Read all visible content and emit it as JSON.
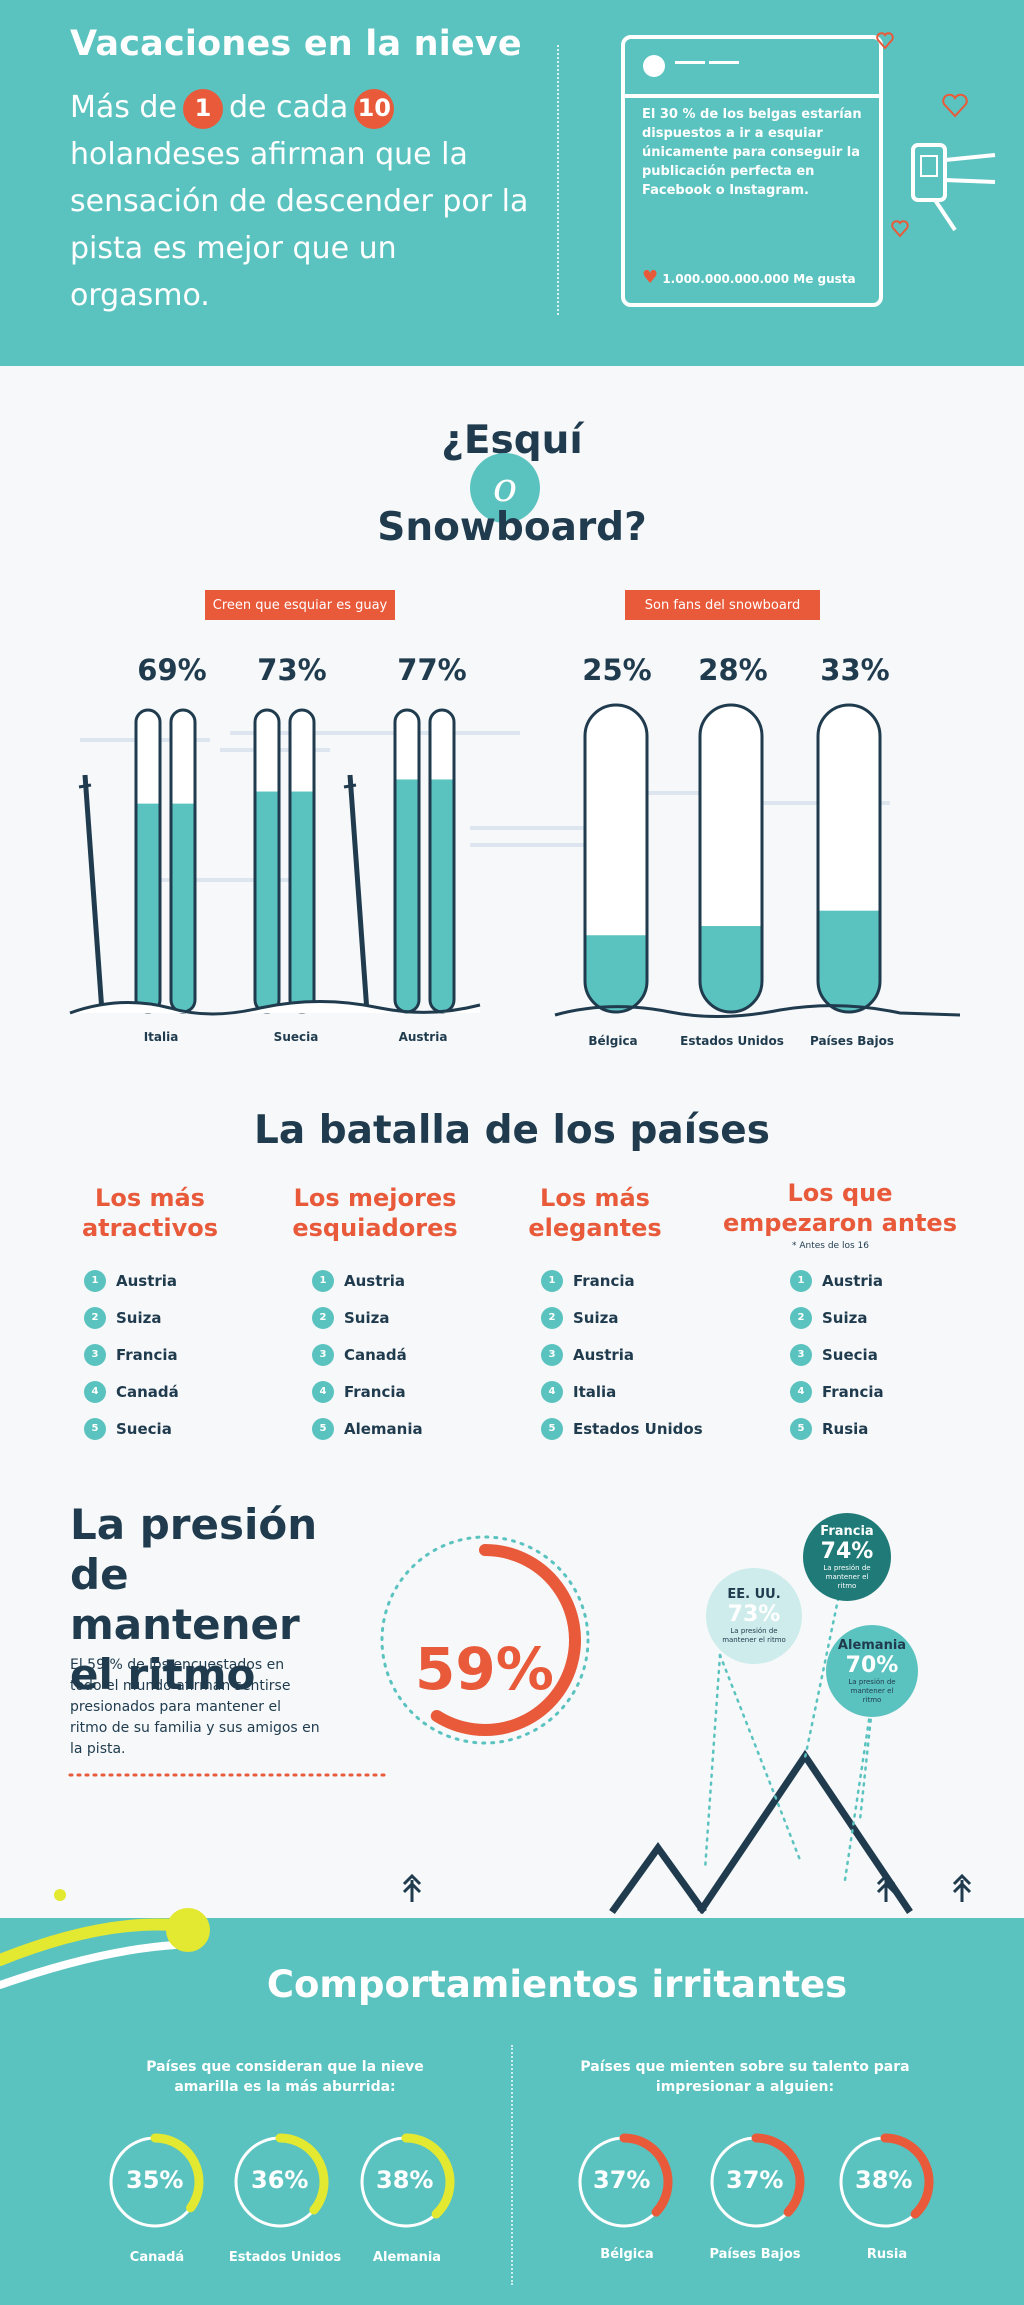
{
  "header": {
    "title": "Vacaciones en la nieve",
    "text_before": "Más de",
    "num1": "1",
    "text_mid": "de cada",
    "num2": "10",
    "text_after": "holandeses afirman que la sensación de descender por la pista es mejor que un orgasmo.",
    "social_text": "El 30 % de los belgas estarían dispuestos a ir a esquiar únicamente para conseguir la publicación perfecta en Facebook o Instagram.",
    "likes": "1.000.000.000.000 Me gusta"
  },
  "skivs": {
    "title_line1": "¿Esquí",
    "title_o": "o",
    "title_line2": "Snowboard?",
    "ski_label": "Creen que esquiar es guay",
    "snow_label": "Son fans del snowboard",
    "ski": [
      {
        "country": "Italia",
        "pct": "69%",
        "value": 69
      },
      {
        "country": "Suecia",
        "pct": "73%",
        "value": 73
      },
      {
        "country": "Austria",
        "pct": "77%",
        "value": 77
      }
    ],
    "snow": [
      {
        "country": "Bélgica",
        "pct": "25%",
        "value": 25
      },
      {
        "country": "Estados Unidos",
        "pct": "28%",
        "value": 28
      },
      {
        "country": "Países Bajos",
        "pct": "33%",
        "value": 33
      }
    ]
  },
  "battle": {
    "title": "La batalla de los países",
    "note": "* Antes de los 16",
    "categories": [
      {
        "title_l1": "Los más",
        "title_l2": "atractivos",
        "items": [
          "Austria",
          "Suiza",
          "Francia",
          "Canadá",
          "Suecia"
        ]
      },
      {
        "title_l1": "Los mejores",
        "title_l2": "esquiadores",
        "items": [
          "Austria",
          "Suiza",
          "Canadá",
          "Francia",
          "Alemania"
        ]
      },
      {
        "title_l1": "Los más",
        "title_l2": "elegantes",
        "items": [
          "Francia",
          "Suiza",
          "Austria",
          "Italia",
          "Estados Unidos"
        ]
      },
      {
        "title_l1": "Los que",
        "title_l2": "empezaron antes",
        "items": [
          "Austria",
          "Suiza",
          "Suecia",
          "Francia",
          "Rusia"
        ]
      }
    ]
  },
  "pressure": {
    "title_l1": "La presión",
    "title_l2": "de mantener",
    "title_l3": "el ritmo",
    "text": "El 59 % de los encuestados en todo el mundo afirman sentirse presionados para mantener el ritmo de su familia y sus amigos en la pista.",
    "pct": "59%",
    "value": 59,
    "bubbles": [
      {
        "name": "Francia",
        "pct": "74%",
        "sub": "La presión de mantener el ritmo"
      },
      {
        "name": "EE. UU.",
        "pct": "73%",
        "sub": "La presión de mantener el ritmo"
      },
      {
        "name": "Alemania",
        "pct": "70%",
        "sub": "La presión de mantener el ritmo"
      }
    ]
  },
  "irritating": {
    "title": "Comportamientos irritantes",
    "left_title_l1": "Países que consideran que la nieve",
    "left_title_l2": "amarilla es la más aburrida:",
    "right_title_l1": "Países que mienten sobre su talento para",
    "right_title_l2": "impresionar a alguien:",
    "left": [
      {
        "country": "Canadá",
        "pct": "35%",
        "value": 35
      },
      {
        "country": "Estados Unidos",
        "pct": "36%",
        "value": 36
      },
      {
        "country": "Alemania",
        "pct": "38%",
        "value": 38
      }
    ],
    "right": [
      {
        "country": "Bélgica",
        "pct": "37%",
        "value": 37
      },
      {
        "country": "Países Bajos",
        "pct": "37%",
        "value": 37
      },
      {
        "country": "Rusia",
        "pct": "38%",
        "value": 38
      }
    ],
    "colors": {
      "yellow": "#e3e830",
      "orange": "#e85a3a"
    }
  },
  "colors": {
    "teal": "#5bc3bf",
    "orange": "#e85a3a",
    "navy": "#1f3b4d"
  }
}
